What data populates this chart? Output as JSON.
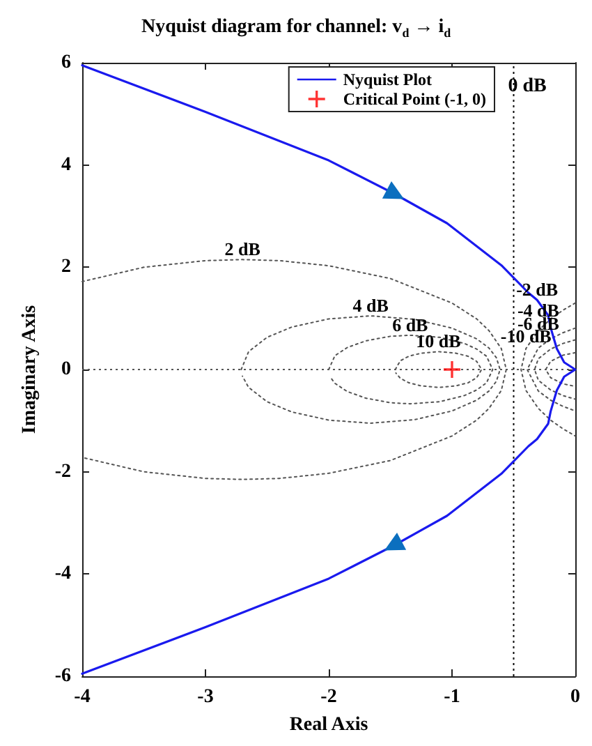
{
  "chart_data": {
    "type": "line",
    "title": "Nyquist diagram for channel: v$_{d}$ → i$_{d}$",
    "xlabel": "Real Axis",
    "ylabel": "Imaginary Axis",
    "xlim": [
      -4,
      0
    ],
    "xticks": [
      -4,
      -3,
      -2,
      -1,
      0
    ],
    "ylim": [
      -6,
      6
    ],
    "yticks": [
      -6,
      -4,
      -2,
      0,
      2,
      4,
      6
    ],
    "grid": false,
    "legend": "top right",
    "series": [
      {
        "name": "Nyquist Plot",
        "color": "#1a1aee",
        "marker": "none",
        "line_style": "solid",
        "x": [
          -4,
          -3,
          -2,
          -1.47,
          -1.04,
          -0.6,
          -0.38,
          -0.31,
          -0.22,
          -0.2,
          -0.15,
          -0.09,
          0,
          -0.09,
          -0.15,
          -0.2,
          -0.22,
          -0.31,
          -0.38,
          -0.6,
          -1.04,
          -1.47,
          -2,
          -3,
          -4
        ],
        "values": [
          5.95,
          5.04,
          4.09,
          3.44,
          2.86,
          2.04,
          1.5,
          1.36,
          1.06,
          0.82,
          0.41,
          0.14,
          0,
          -0.14,
          -0.41,
          -0.82,
          -1.06,
          -1.36,
          -1.5,
          -2.04,
          -2.86,
          -3.44,
          -4.09,
          -5.04,
          -5.95
        ]
      },
      {
        "name": "Critical Point (-1, 0)",
        "type": "scatter",
        "color": "#ff0000",
        "marker": "cross",
        "x": [
          -1
        ],
        "values": [
          0
        ]
      },
      {
        "color": "#555555",
        "marker": "none",
        "line_style": "dotted",
        "x": [
          -4,
          -3.5,
          -3,
          -2.7,
          -2.4,
          -2,
          -1.5,
          -1,
          -0.8,
          -0.7,
          -0.6,
          -0.56,
          -0.6,
          -0.7,
          -0.8,
          -1,
          -1.5,
          -2,
          -2.4,
          -2.7,
          -3,
          -3.5,
          -4
        ],
        "values": [
          1.72,
          2.0,
          2.13,
          2.15,
          2.13,
          2.03,
          1.78,
          1.3,
          0.99,
          0.76,
          0.41,
          0,
          -0.41,
          -0.76,
          -0.99,
          -1.3,
          -1.78,
          -2.03,
          -2.13,
          -2.15,
          -2.13,
          -2.0,
          -1.72
        ]
      },
      {
        "color": "#555555",
        "marker": "none",
        "line_style": "dotted",
        "x": [
          -2.71,
          -2.65,
          -2.5,
          -2.3,
          -2,
          -1.66,
          -1.3,
          -1,
          -0.8,
          -0.7,
          -0.64,
          -0.61,
          -0.64,
          -0.7,
          -0.8,
          -1,
          -1.3,
          -1.66,
          -2,
          -2.3,
          -2.5,
          -2.65,
          -2.7
        ],
        "values": [
          0,
          0.35,
          0.63,
          0.83,
          0.99,
          1.05,
          0.98,
          0.81,
          0.6,
          0.42,
          0.23,
          0,
          -0.23,
          -0.42,
          -0.6,
          -0.81,
          -0.98,
          -1.05,
          -0.99,
          -0.83,
          -0.63,
          -0.35,
          -0.13
        ]
      },
      {
        "color": "#555555",
        "marker": "none",
        "line_style": "dotted",
        "x": [
          -2.0,
          -1.95,
          -1.85,
          -1.7,
          -1.5,
          -1.34,
          -1.1,
          -0.9,
          -0.8,
          -0.72,
          -0.67,
          -0.72,
          -0.8,
          -0.9,
          -1.1,
          -1.34,
          -1.5,
          -1.7,
          -1.85,
          -1.95,
          -1.99
        ],
        "values": [
          0,
          0.27,
          0.43,
          0.56,
          0.65,
          0.67,
          0.63,
          0.51,
          0.4,
          0.26,
          0,
          -0.26,
          -0.4,
          -0.51,
          -0.63,
          -0.67,
          -0.65,
          -0.56,
          -0.43,
          -0.27,
          -0.14
        ]
      },
      {
        "color": "#555555",
        "marker": "none",
        "line_style": "dotted",
        "x": [
          -1.46,
          -1.42,
          -1.35,
          -1.25,
          -1.11,
          -0.97,
          -0.87,
          -0.8,
          -0.76,
          -0.8,
          -0.87,
          -0.97,
          -1.11,
          -1.25,
          -1.35,
          -1.42,
          -1.455
        ],
        "values": [
          0,
          0.17,
          0.26,
          0.32,
          0.35,
          0.32,
          0.26,
          0.16,
          0,
          -0.16,
          -0.26,
          -0.32,
          -0.35,
          -0.32,
          -0.26,
          -0.17,
          -0.07
        ]
      },
      {
        "color": "#555555",
        "marker": "none",
        "line_style": "dotted",
        "x": [
          0,
          -0.1,
          -0.2,
          -0.3,
          -0.4,
          -0.44,
          -0.4,
          -0.3,
          -0.2,
          -0.1,
          0
        ],
        "values": [
          1.3,
          1.16,
          0.99,
          0.76,
          0.41,
          0,
          -0.41,
          -0.76,
          -0.99,
          -1.16,
          -1.3
        ]
      },
      {
        "color": "#555555",
        "marker": "none",
        "line_style": "dotted",
        "x": [
          0,
          -0.1,
          -0.2,
          -0.3,
          -0.39,
          -0.3,
          -0.2,
          -0.1,
          0
        ],
        "values": [
          0.81,
          0.72,
          0.6,
          0.42,
          0,
          -0.42,
          -0.6,
          -0.72,
          -0.81
        ]
      },
      {
        "color": "#555555",
        "marker": "none",
        "line_style": "dotted",
        "x": [
          0,
          -0.1,
          -0.2,
          -0.3,
          -0.33,
          -0.3,
          -0.2,
          -0.1,
          0
        ],
        "values": [
          0.58,
          0.51,
          0.4,
          0.21,
          0,
          -0.21,
          -0.4,
          -0.51,
          -0.58
        ]
      },
      {
        "color": "#555555",
        "marker": "none",
        "line_style": "dotted",
        "x": [
          0,
          -0.1,
          -0.2,
          -0.24,
          -0.2,
          -0.1,
          0
        ],
        "values": [
          0.33,
          0.28,
          0.16,
          0,
          -0.16,
          -0.28,
          -0.33
        ]
      }
    ],
    "ref_lines": [
      {
        "axis": "x",
        "value": -0.5,
        "label": "0 dB",
        "color": "#000000",
        "line_style": "dotted"
      },
      {
        "axis": "y",
        "value": 0,
        "color": "#555555",
        "line_style": "dotted"
      }
    ],
    "annotations": [
      {
        "text": "2 dB",
        "x": -2.7,
        "y": 2.15
      },
      {
        "text": "4 dB",
        "x": -1.66,
        "y": 1.05
      },
      {
        "text": "6 dB",
        "x": -1.34,
        "y": 0.67
      },
      {
        "text": "10 dB",
        "x": -1.11,
        "y": 0.35
      },
      {
        "text": "-2 dB",
        "x": -0.31,
        "y": 1.36
      },
      {
        "text": "-4 dB",
        "x": -0.3,
        "y": 0.95
      },
      {
        "text": "-6 dB",
        "x": -0.3,
        "y": 0.7
      },
      {
        "text": "-10 dB",
        "x": -0.4,
        "y": 0.45
      }
    ]
  }
}
